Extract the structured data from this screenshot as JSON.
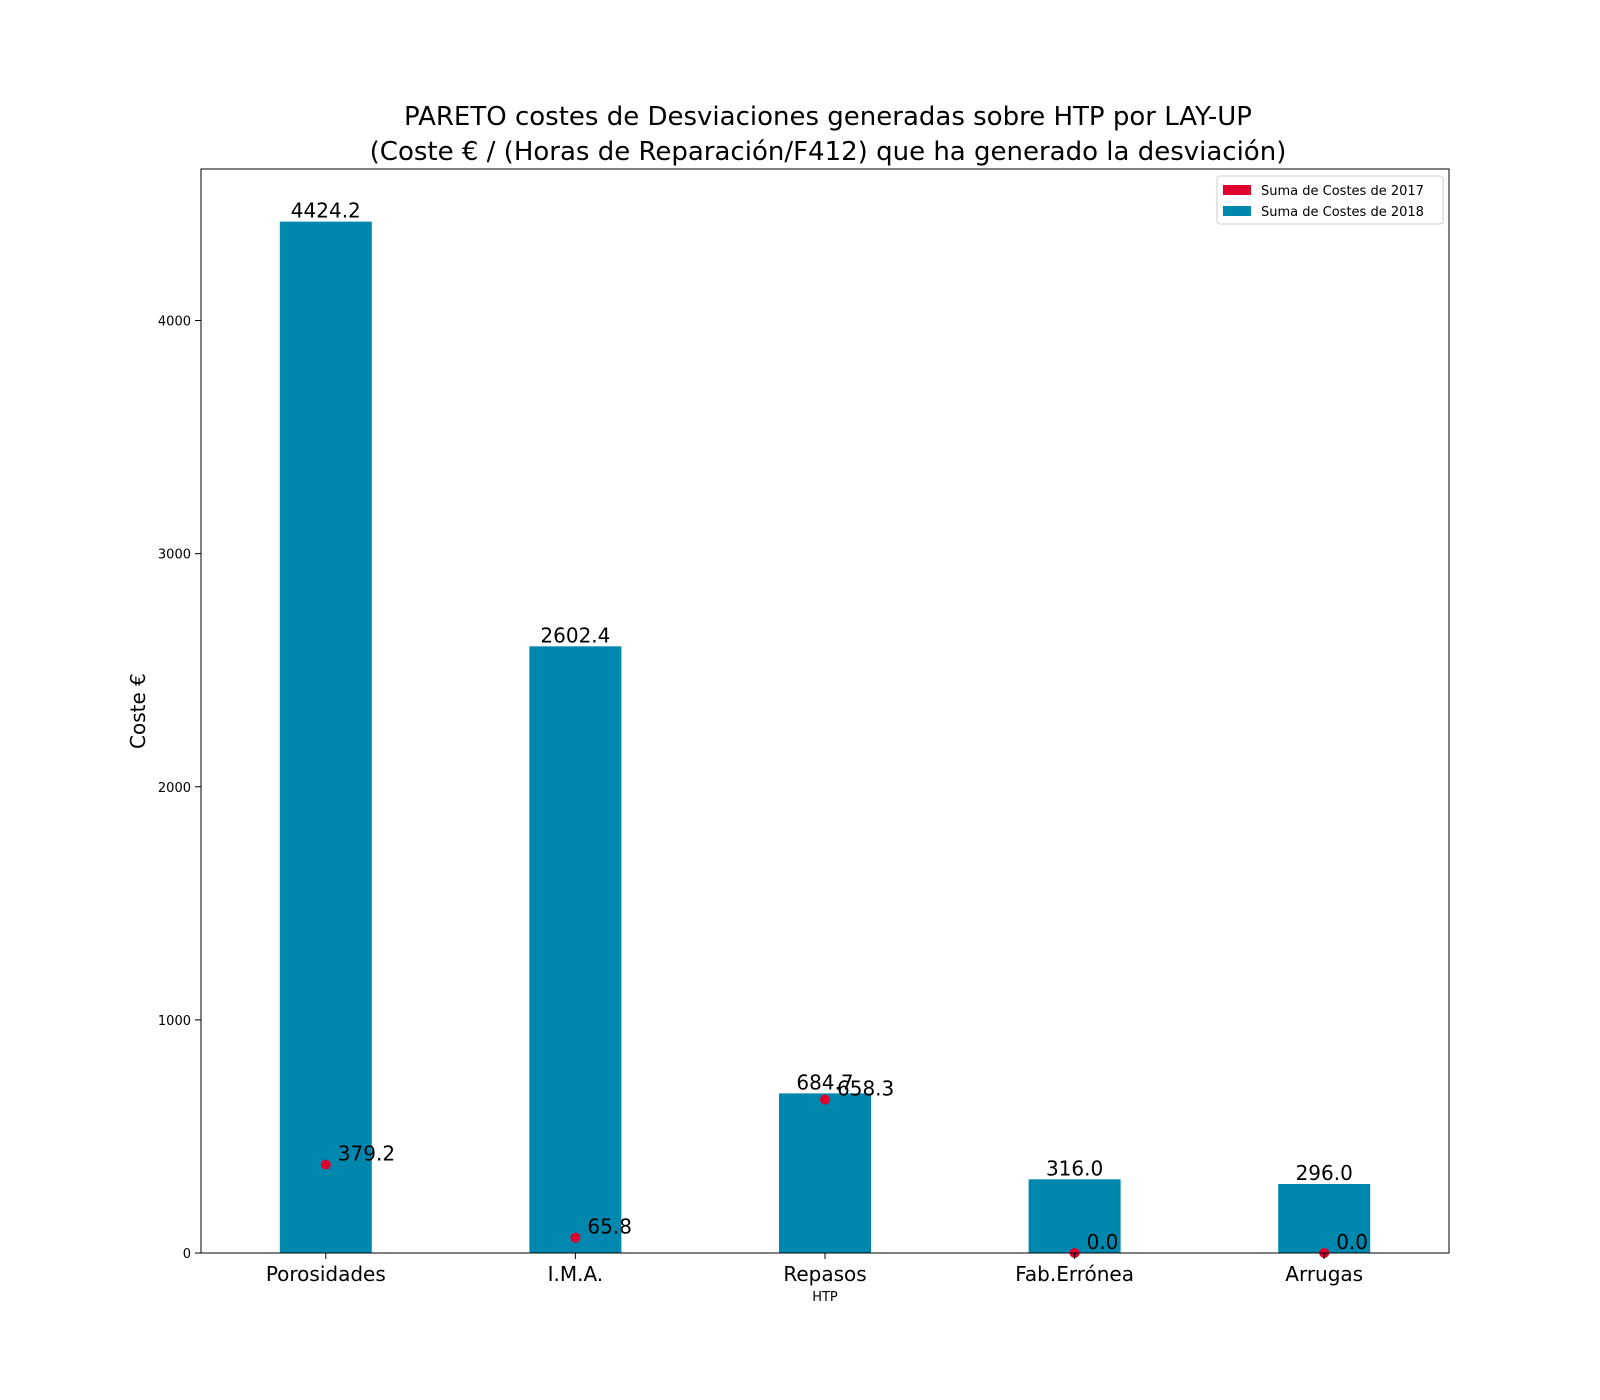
{
  "chart_data": {
    "type": "bar",
    "title_lines": [
      "PARETO costes de Desviaciones  generadas  sobre HTP por LAY-UP",
      "(Coste € / (Horas de Reparación/F412) que ha generado la desviación)"
    ],
    "xlabel": "HTP",
    "ylabel": "Coste €",
    "categories": [
      "Porosidades",
      "I.M.A.",
      "Repasos",
      "Fab.Errónea",
      "Arrugas"
    ],
    "ylim": [
      0,
      4650
    ],
    "yticks": [
      0,
      1000,
      2000,
      3000,
      4000
    ],
    "grid": false,
    "legend_position": "top-right",
    "series": [
      {
        "name": "Suma de Costes de 2018",
        "kind": "bar",
        "color": "#0087AE",
        "values": [
          4424.2,
          2602.4,
          684.7,
          316.0,
          296.0
        ],
        "labels": [
          "4424.2",
          "2602.4",
          "684.7",
          "316.0",
          "296.0"
        ]
      },
      {
        "name": "Suma de Costes de 2017",
        "kind": "point",
        "color": "#E0002E",
        "values": [
          379.2,
          65.8,
          658.3,
          0.0,
          0.0
        ],
        "labels": [
          "379.2",
          "65.8",
          "658.3",
          "0.0",
          "0.0"
        ]
      }
    ],
    "legend": [
      {
        "label": "Suma de Costes de 2017",
        "color": "#E0002E"
      },
      {
        "label": "Suma de Costes de 2018",
        "color": "#0087AE"
      }
    ]
  }
}
